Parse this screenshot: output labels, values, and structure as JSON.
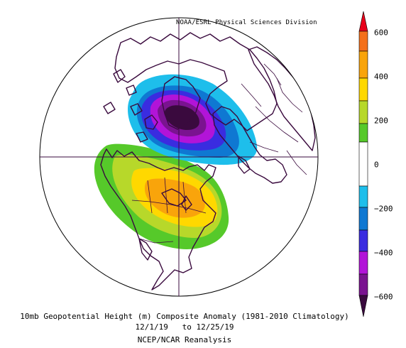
{
  "map": {
    "credit": "NOAA/ESRL Physical Sciences Division",
    "caption_line1": "10mb Geopotential Height (m) Composite Anomaly (1981-2010 Climatology)",
    "caption_line2": "12/1/19   to 12/25/19",
    "caption_line3": "NCEP/NCAR Reanalysis"
  },
  "colorbar": {
    "labels": [
      "600",
      "400",
      "200",
      "0",
      "−200",
      "−400",
      "−600"
    ],
    "colors": {
      "above_600": "#e8001a",
      "500_600": "#f4701a",
      "400_500": "#f9a40b",
      "300_400": "#ffd800",
      "200_300": "#b7d82a",
      "100_200": "#56c92a",
      "neg100_100": "#ffffff",
      "neg200_neg100": "#1ebeeb",
      "neg300_neg200": "#0f78d2",
      "neg400_neg300": "#3a2ce0",
      "neg500_neg400": "#b214d8",
      "neg600_neg500": "#7a1390",
      "below_neg600": "#3a0a3e"
    }
  }
}
